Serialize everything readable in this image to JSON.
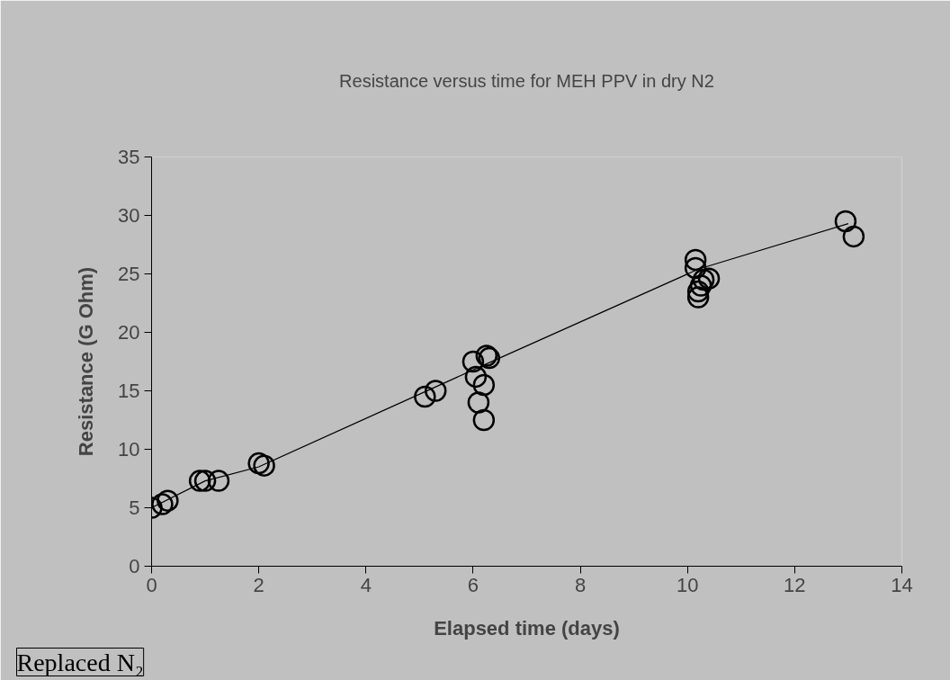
{
  "chart_data": {
    "type": "scatter",
    "title": "Resistance versus time for MEH PPV in dry N2",
    "xlabel": "Elapsed time (days)",
    "ylabel": "Resistance (G Ohm)",
    "xlim": [
      0,
      14
    ],
    "xticks": [
      0,
      2,
      4,
      6,
      8,
      10,
      12,
      14
    ],
    "ylim": [
      0,
      35
    ],
    "yticks": [
      0,
      5,
      10,
      15,
      20,
      25,
      30,
      35
    ],
    "grid": false,
    "series": [
      {
        "color": "#000000",
        "marker": "circle",
        "x": [
          0.0,
          0.2,
          0.3,
          0.9,
          1.0,
          1.25,
          2.0,
          2.1,
          5.1,
          5.3,
          6.0,
          6.05,
          6.1,
          6.2,
          6.2,
          6.25,
          6.3,
          10.15,
          10.15,
          10.2,
          10.2,
          10.25,
          10.3,
          10.4,
          12.95,
          13.1
        ],
        "values": [
          5.0,
          5.3,
          5.6,
          7.3,
          7.3,
          7.3,
          8.8,
          8.6,
          14.5,
          15.0,
          17.5,
          16.2,
          14.0,
          15.5,
          12.5,
          18.0,
          17.8,
          26.2,
          25.5,
          23.0,
          23.5,
          24.0,
          24.5,
          24.6,
          29.5,
          28.2
        ]
      },
      {
        "type": "line",
        "color": "#000000",
        "x": [
          0.0,
          1.0,
          2.0,
          6.2,
          10.2,
          13.0
        ],
        "values": [
          5.0,
          7.3,
          8.5,
          17.2,
          25.4,
          29.3
        ]
      }
    ],
    "annotations": [
      "Replaced N₂"
    ]
  }
}
